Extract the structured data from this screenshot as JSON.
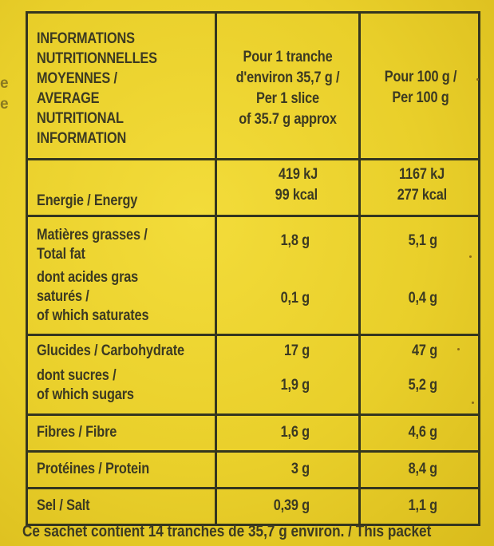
{
  "table": {
    "header": {
      "title_lines": [
        "INFORMATIONS",
        "NUTRITIONNELLES",
        "MOYENNES /",
        "AVERAGE",
        "NUTRITIONAL",
        "INFORMATION"
      ],
      "col1_lines": [
        "Pour 1 tranche",
        "d'environ 35,7 g /",
        "Per 1 slice",
        "of 35.7 g approx"
      ],
      "col2_lines": [
        "Pour 100 g /",
        "Per 100 g"
      ]
    },
    "energy": {
      "label": "Energie / Energy",
      "col1_kj": "419 kJ",
      "col1_kcal": "99 kcal",
      "col2_kj": "1167 kJ",
      "col2_kcal": "277 kcal"
    },
    "fat": {
      "label_lines": [
        "Matières grasses /",
        "Total fat"
      ],
      "col1": "1,8 g",
      "col2": "5,1 g"
    },
    "saturates": {
      "label_lines": [
        "dont acides gras",
        "saturés /",
        "of which saturates"
      ],
      "col1": "0,1 g",
      "col2": "0,4 g"
    },
    "carbohydrate": {
      "label": "Glucides / Carbohydrate",
      "col1": "17 g",
      "col2": "47 g"
    },
    "sugars": {
      "label_lines": [
        "dont sucres /",
        "of which sugars"
      ],
      "col1": "1,9 g",
      "col2": "5,2 g"
    },
    "fibre": {
      "label": "Fibres / Fibre",
      "col1": "1,6 g",
      "col2": "4,6 g"
    },
    "protein": {
      "label": "Protéines / Protein",
      "col1": "3 g",
      "col2": "8,4 g"
    },
    "salt": {
      "label": "Sel / Salt",
      "col1": "0,39 g",
      "col2": "1,1 g"
    }
  },
  "footer_text": "Ce sachet contient 14 tranches de 35,7 g environ. / This packet",
  "colors": {
    "background": "#e9cf2a",
    "ink": "#34361f"
  }
}
